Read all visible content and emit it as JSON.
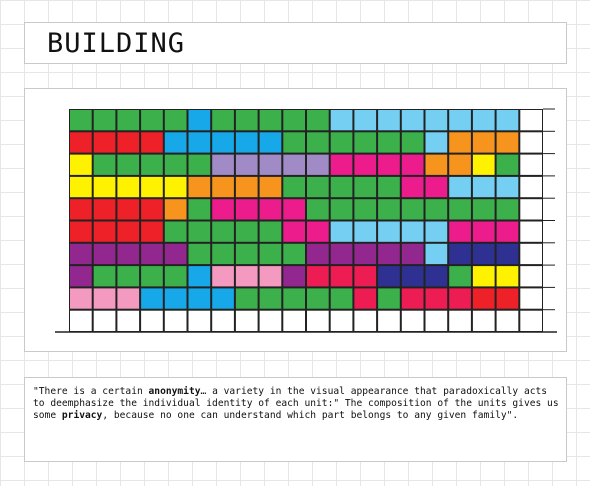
{
  "title": "BUILDING",
  "colors": {
    "G": "#3cb04a",
    "B": "#16a8e8",
    "L": "#74cff2",
    "R": "#ee2028",
    "O": "#f7941d",
    "Y": "#fff200",
    "V": "#a18bc6",
    "M": "#ec1c8c",
    "P": "#92278f",
    "K": "#f49ac1",
    "N": "#2e3192",
    "S": "#ed1c52",
    "W": "#ffffff"
  },
  "facade": {
    "rows": [
      [
        "G",
        "G",
        "G",
        "G",
        "G",
        "B",
        "G",
        "G",
        "G",
        "G",
        "G",
        "L",
        "L",
        "L",
        "L",
        "L",
        "L",
        "L",
        "L",
        "W"
      ],
      [
        "R",
        "R",
        "R",
        "R",
        "B",
        "B",
        "B",
        "B",
        "B",
        "G",
        "G",
        "G",
        "G",
        "G",
        "G",
        "L",
        "O",
        "O",
        "O",
        "W"
      ],
      [
        "Y",
        "G",
        "G",
        "G",
        "G",
        "G",
        "V",
        "V",
        "V",
        "V",
        "V",
        "M",
        "M",
        "M",
        "M",
        "O",
        "O",
        "Y",
        "G",
        "W"
      ],
      [
        "Y",
        "Y",
        "Y",
        "Y",
        "Y",
        "O",
        "O",
        "O",
        "O",
        "G",
        "G",
        "G",
        "G",
        "G",
        "M",
        "M",
        "L",
        "L",
        "L",
        "W"
      ],
      [
        "R",
        "R",
        "R",
        "R",
        "O",
        "G",
        "M",
        "M",
        "M",
        "M",
        "G",
        "G",
        "G",
        "G",
        "G",
        "G",
        "G",
        "G",
        "G",
        "W"
      ],
      [
        "R",
        "R",
        "R",
        "R",
        "G",
        "G",
        "G",
        "G",
        "G",
        "M",
        "M",
        "L",
        "L",
        "L",
        "L",
        "L",
        "M",
        "M",
        "M",
        "W"
      ],
      [
        "P",
        "P",
        "P",
        "P",
        "P",
        "G",
        "G",
        "G",
        "G",
        "G",
        "P",
        "P",
        "P",
        "P",
        "P",
        "L",
        "N",
        "N",
        "N",
        "W"
      ],
      [
        "P",
        "G",
        "G",
        "G",
        "G",
        "B",
        "K",
        "K",
        "K",
        "P",
        "S",
        "S",
        "S",
        "N",
        "N",
        "N",
        "G",
        "Y",
        "Y",
        "W"
      ],
      [
        "K",
        "K",
        "K",
        "B",
        "B",
        "B",
        "B",
        "G",
        "G",
        "G",
        "G",
        "G",
        "S",
        "G",
        "S",
        "S",
        "S",
        "R",
        "R",
        "W"
      ],
      [
        "W",
        "W",
        "W",
        "W",
        "W",
        "W",
        "W",
        "W",
        "W",
        "W",
        "W",
        "W",
        "W",
        "W",
        "W",
        "W",
        "W",
        "W",
        "W",
        "W"
      ]
    ]
  },
  "quote": {
    "p1": "\"There is a certain ",
    "b1": "anonymity",
    "p2": "… a variety in the visual appearance that paradoxically acts to deemphasize the individual identity of each unit:\" The composition of the units gives us some ",
    "b2": "privacy",
    "p3": ", because no one can understand which part belongs to any given family\"."
  }
}
